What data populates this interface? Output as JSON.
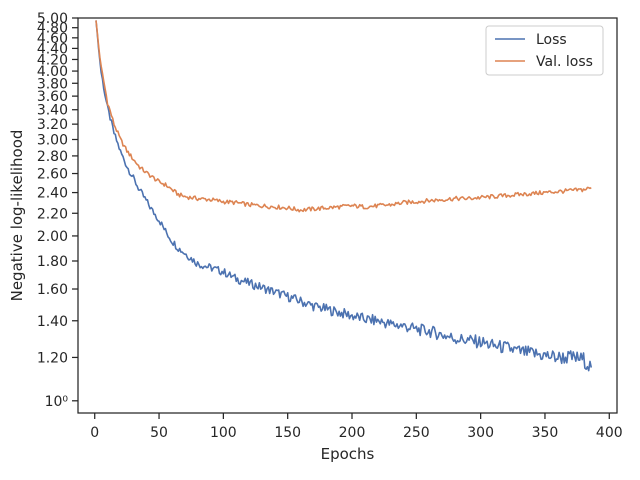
{
  "chart_data": {
    "type": "line",
    "title": "",
    "xlabel": "Epochs",
    "ylabel": "Negative log-likelihood",
    "xlim": [
      -13,
      406
    ],
    "ylim": [
      0.95,
      5.0
    ],
    "yscale": "log",
    "grid": false,
    "legend_position": "top-right",
    "x_ticks": [
      0,
      50,
      100,
      150,
      200,
      250,
      300,
      350,
      400
    ],
    "x_tick_labels": [
      "0",
      "50",
      "100",
      "150",
      "200",
      "250",
      "300",
      "350",
      "400"
    ],
    "y_ticks": [
      1.0,
      1.2,
      1.4,
      1.6,
      1.8,
      2.0,
      2.2,
      2.4,
      2.6,
      2.8,
      3.0,
      3.2,
      3.4,
      3.6,
      3.8,
      4.0,
      4.2,
      4.4,
      4.6,
      4.8,
      5.0
    ],
    "y_tick_labels": [
      "10⁰",
      "1.20",
      "1.40",
      "1.60",
      "1.80",
      "2.00",
      "2.20",
      "2.40",
      "2.60",
      "2.80",
      "3.00",
      "3.20",
      "3.40",
      "3.60",
      "3.80",
      "4.00",
      "4.20",
      "4.40",
      "4.60",
      "4.80",
      "5.00"
    ],
    "series": [
      {
        "name": "Loss",
        "color": "#4c72b0",
        "points": [
          [
            1,
            4.95
          ],
          [
            3,
            4.4
          ],
          [
            5,
            3.98
          ],
          [
            8,
            3.62
          ],
          [
            10,
            3.42
          ],
          [
            15,
            3.08
          ],
          [
            20,
            2.85
          ],
          [
            25,
            2.68
          ],
          [
            30,
            2.55
          ],
          [
            35,
            2.42
          ],
          [
            40,
            2.32
          ],
          [
            45,
            2.22
          ],
          [
            50,
            2.14
          ],
          [
            55,
            2.04
          ],
          [
            60,
            1.96
          ],
          [
            65,
            1.9
          ],
          [
            70,
            1.86
          ],
          [
            75,
            1.82
          ],
          [
            80,
            1.78
          ],
          [
            90,
            1.75
          ],
          [
            100,
            1.72
          ],
          [
            110,
            1.67
          ],
          [
            120,
            1.64
          ],
          [
            130,
            1.61
          ],
          [
            140,
            1.58
          ],
          [
            150,
            1.55
          ],
          [
            160,
            1.52
          ],
          [
            170,
            1.49
          ],
          [
            180,
            1.47
          ],
          [
            190,
            1.45
          ],
          [
            200,
            1.43
          ],
          [
            210,
            1.41
          ],
          [
            220,
            1.4
          ],
          [
            230,
            1.38
          ],
          [
            240,
            1.37
          ],
          [
            250,
            1.35
          ],
          [
            260,
            1.34
          ],
          [
            270,
            1.32
          ],
          [
            280,
            1.3
          ],
          [
            290,
            1.29
          ],
          [
            300,
            1.28
          ],
          [
            310,
            1.26
          ],
          [
            320,
            1.25
          ],
          [
            330,
            1.23
          ],
          [
            340,
            1.22
          ],
          [
            350,
            1.21
          ],
          [
            360,
            1.2
          ],
          [
            370,
            1.2
          ],
          [
            380,
            1.19
          ],
          [
            386,
            1.15
          ]
        ]
      },
      {
        "name": "Val. loss",
        "color": "#dd8452",
        "points": [
          [
            1,
            4.95
          ],
          [
            3,
            4.45
          ],
          [
            5,
            4.06
          ],
          [
            8,
            3.72
          ],
          [
            10,
            3.5
          ],
          [
            15,
            3.2
          ],
          [
            20,
            3.0
          ],
          [
            25,
            2.86
          ],
          [
            30,
            2.76
          ],
          [
            35,
            2.67
          ],
          [
            40,
            2.61
          ],
          [
            45,
            2.56
          ],
          [
            50,
            2.51
          ],
          [
            55,
            2.48
          ],
          [
            60,
            2.43
          ],
          [
            65,
            2.38
          ],
          [
            70,
            2.36
          ],
          [
            80,
            2.34
          ],
          [
            90,
            2.33
          ],
          [
            100,
            2.31
          ],
          [
            110,
            2.3
          ],
          [
            120,
            2.28
          ],
          [
            130,
            2.27
          ],
          [
            140,
            2.26
          ],
          [
            150,
            2.25
          ],
          [
            160,
            2.23
          ],
          [
            170,
            2.24
          ],
          [
            180,
            2.25
          ],
          [
            190,
            2.26
          ],
          [
            200,
            2.27
          ],
          [
            210,
            2.26
          ],
          [
            220,
            2.27
          ],
          [
            230,
            2.28
          ],
          [
            240,
            2.3
          ],
          [
            250,
            2.31
          ],
          [
            260,
            2.32
          ],
          [
            270,
            2.33
          ],
          [
            280,
            2.34
          ],
          [
            290,
            2.34
          ],
          [
            300,
            2.35
          ],
          [
            310,
            2.36
          ],
          [
            320,
            2.37
          ],
          [
            330,
            2.38
          ],
          [
            340,
            2.39
          ],
          [
            350,
            2.4
          ],
          [
            360,
            2.41
          ],
          [
            370,
            2.42
          ],
          [
            380,
            2.43
          ],
          [
            386,
            2.45
          ]
        ]
      }
    ]
  }
}
